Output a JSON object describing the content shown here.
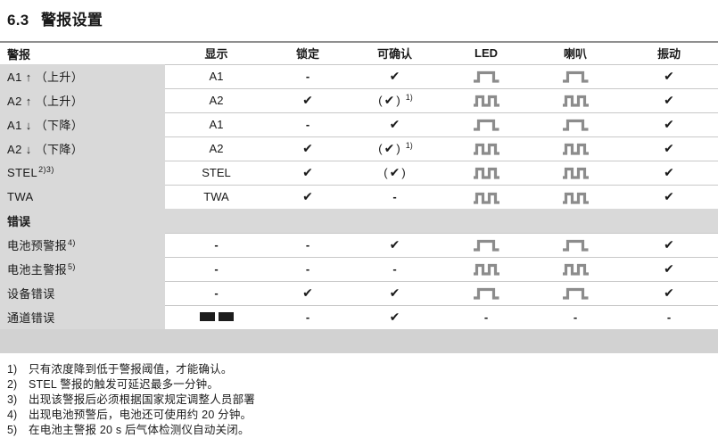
{
  "title": {
    "number": "6.3",
    "text": "警报设置"
  },
  "table": {
    "headers": [
      {
        "label": "警报"
      },
      {
        "label": "显示"
      },
      {
        "label": "锁定"
      },
      {
        "label": "可确认"
      },
      {
        "label": "LED"
      },
      {
        "label": "喇叭"
      },
      {
        "label": "振动"
      }
    ],
    "column_keys": [
      "display",
      "latching",
      "acknowledgeable",
      "led",
      "horn",
      "vibration"
    ],
    "sections": [
      {
        "header": null,
        "rows": [
          {
            "name": {
              "text": "A1 ↑ （上升）",
              "sup": ""
            },
            "cells": [
              {
                "type": "text",
                "value": "A1"
              },
              {
                "type": "dash"
              },
              {
                "type": "check"
              },
              {
                "type": "pulse1"
              },
              {
                "type": "pulse1"
              },
              {
                "type": "check"
              }
            ]
          },
          {
            "name": {
              "text": "A2 ↑ （上升）",
              "sup": ""
            },
            "cells": [
              {
                "type": "text",
                "value": "A2"
              },
              {
                "type": "check"
              },
              {
                "type": "check_paren",
                "sup": "1)"
              },
              {
                "type": "pulse2"
              },
              {
                "type": "pulse2"
              },
              {
                "type": "check"
              }
            ]
          },
          {
            "name": {
              "text": "A1 ↓ （下降）",
              "sup": ""
            },
            "cells": [
              {
                "type": "text",
                "value": "A1"
              },
              {
                "type": "dash"
              },
              {
                "type": "check"
              },
              {
                "type": "pulse1"
              },
              {
                "type": "pulse1"
              },
              {
                "type": "check"
              }
            ]
          },
          {
            "name": {
              "text": "A2 ↓ （下降）",
              "sup": ""
            },
            "cells": [
              {
                "type": "text",
                "value": "A2"
              },
              {
                "type": "check"
              },
              {
                "type": "check_paren",
                "sup": "1)"
              },
              {
                "type": "pulse2"
              },
              {
                "type": "pulse2"
              },
              {
                "type": "check"
              }
            ]
          },
          {
            "name": {
              "text": "STEL",
              "sup": "2)3)"
            },
            "cells": [
              {
                "type": "text",
                "value": "STEL"
              },
              {
                "type": "check"
              },
              {
                "type": "check_paren",
                "sup": ""
              },
              {
                "type": "pulse2"
              },
              {
                "type": "pulse2"
              },
              {
                "type": "check"
              }
            ]
          },
          {
            "name": {
              "text": "TWA",
              "sup": ""
            },
            "cells": [
              {
                "type": "text",
                "value": "TWA"
              },
              {
                "type": "check"
              },
              {
                "type": "dash"
              },
              {
                "type": "pulse2"
              },
              {
                "type": "pulse2"
              },
              {
                "type": "check"
              }
            ]
          }
        ]
      },
      {
        "header": "错误",
        "rows": [
          {
            "name": {
              "text": "电池预警报",
              "sup": "4)"
            },
            "cells": [
              {
                "type": "dash"
              },
              {
                "type": "dash"
              },
              {
                "type": "check"
              },
              {
                "type": "pulse1"
              },
              {
                "type": "pulse1"
              },
              {
                "type": "check"
              }
            ]
          },
          {
            "name": {
              "text": "电池主警报",
              "sup": "5)"
            },
            "cells": [
              {
                "type": "dash"
              },
              {
                "type": "dash"
              },
              {
                "type": "dash"
              },
              {
                "type": "pulse2"
              },
              {
                "type": "pulse2"
              },
              {
                "type": "check"
              }
            ]
          },
          {
            "name": {
              "text": "设备错误",
              "sup": ""
            },
            "cells": [
              {
                "type": "dash"
              },
              {
                "type": "check"
              },
              {
                "type": "check"
              },
              {
                "type": "pulse1"
              },
              {
                "type": "pulse1"
              },
              {
                "type": "check"
              }
            ]
          },
          {
            "name": {
              "text": "通道错误",
              "sup": ""
            },
            "cells": [
              {
                "type": "segments"
              },
              {
                "type": "dash"
              },
              {
                "type": "check"
              },
              {
                "type": "dash"
              },
              {
                "type": "dash"
              },
              {
                "type": "dash"
              }
            ]
          }
        ]
      }
    ]
  },
  "icons": {
    "check": "✔",
    "dash": "-",
    "paren_open": "(",
    "paren_close": ")",
    "pulse1": "single-pulse-wave",
    "pulse2": "double-pulse-wave",
    "segments": "two-black-display-segments"
  },
  "colors": {
    "row_gray": "#d9d9d9",
    "separator": "#c8c8c8",
    "table_top_border": "#8f8f8f",
    "pulse_gray": "#8c8c8c",
    "text": "#1a1a1a"
  },
  "footnotes": [
    {
      "marker": "1)",
      "text": "只有浓度降到低于警报阈值，才能确认。"
    },
    {
      "marker": "2)",
      "text": "STEL 警报的触发可延迟最多一分钟。"
    },
    {
      "marker": "3)",
      "text": "出现该警报后必须根据国家规定调整人员部署"
    },
    {
      "marker": "4)",
      "text": "出现电池预警后，电池还可使用约 20 分钟。"
    },
    {
      "marker": "5)",
      "text": "在电池主警报 20 s 后气体检测仪自动关闭。"
    }
  ]
}
